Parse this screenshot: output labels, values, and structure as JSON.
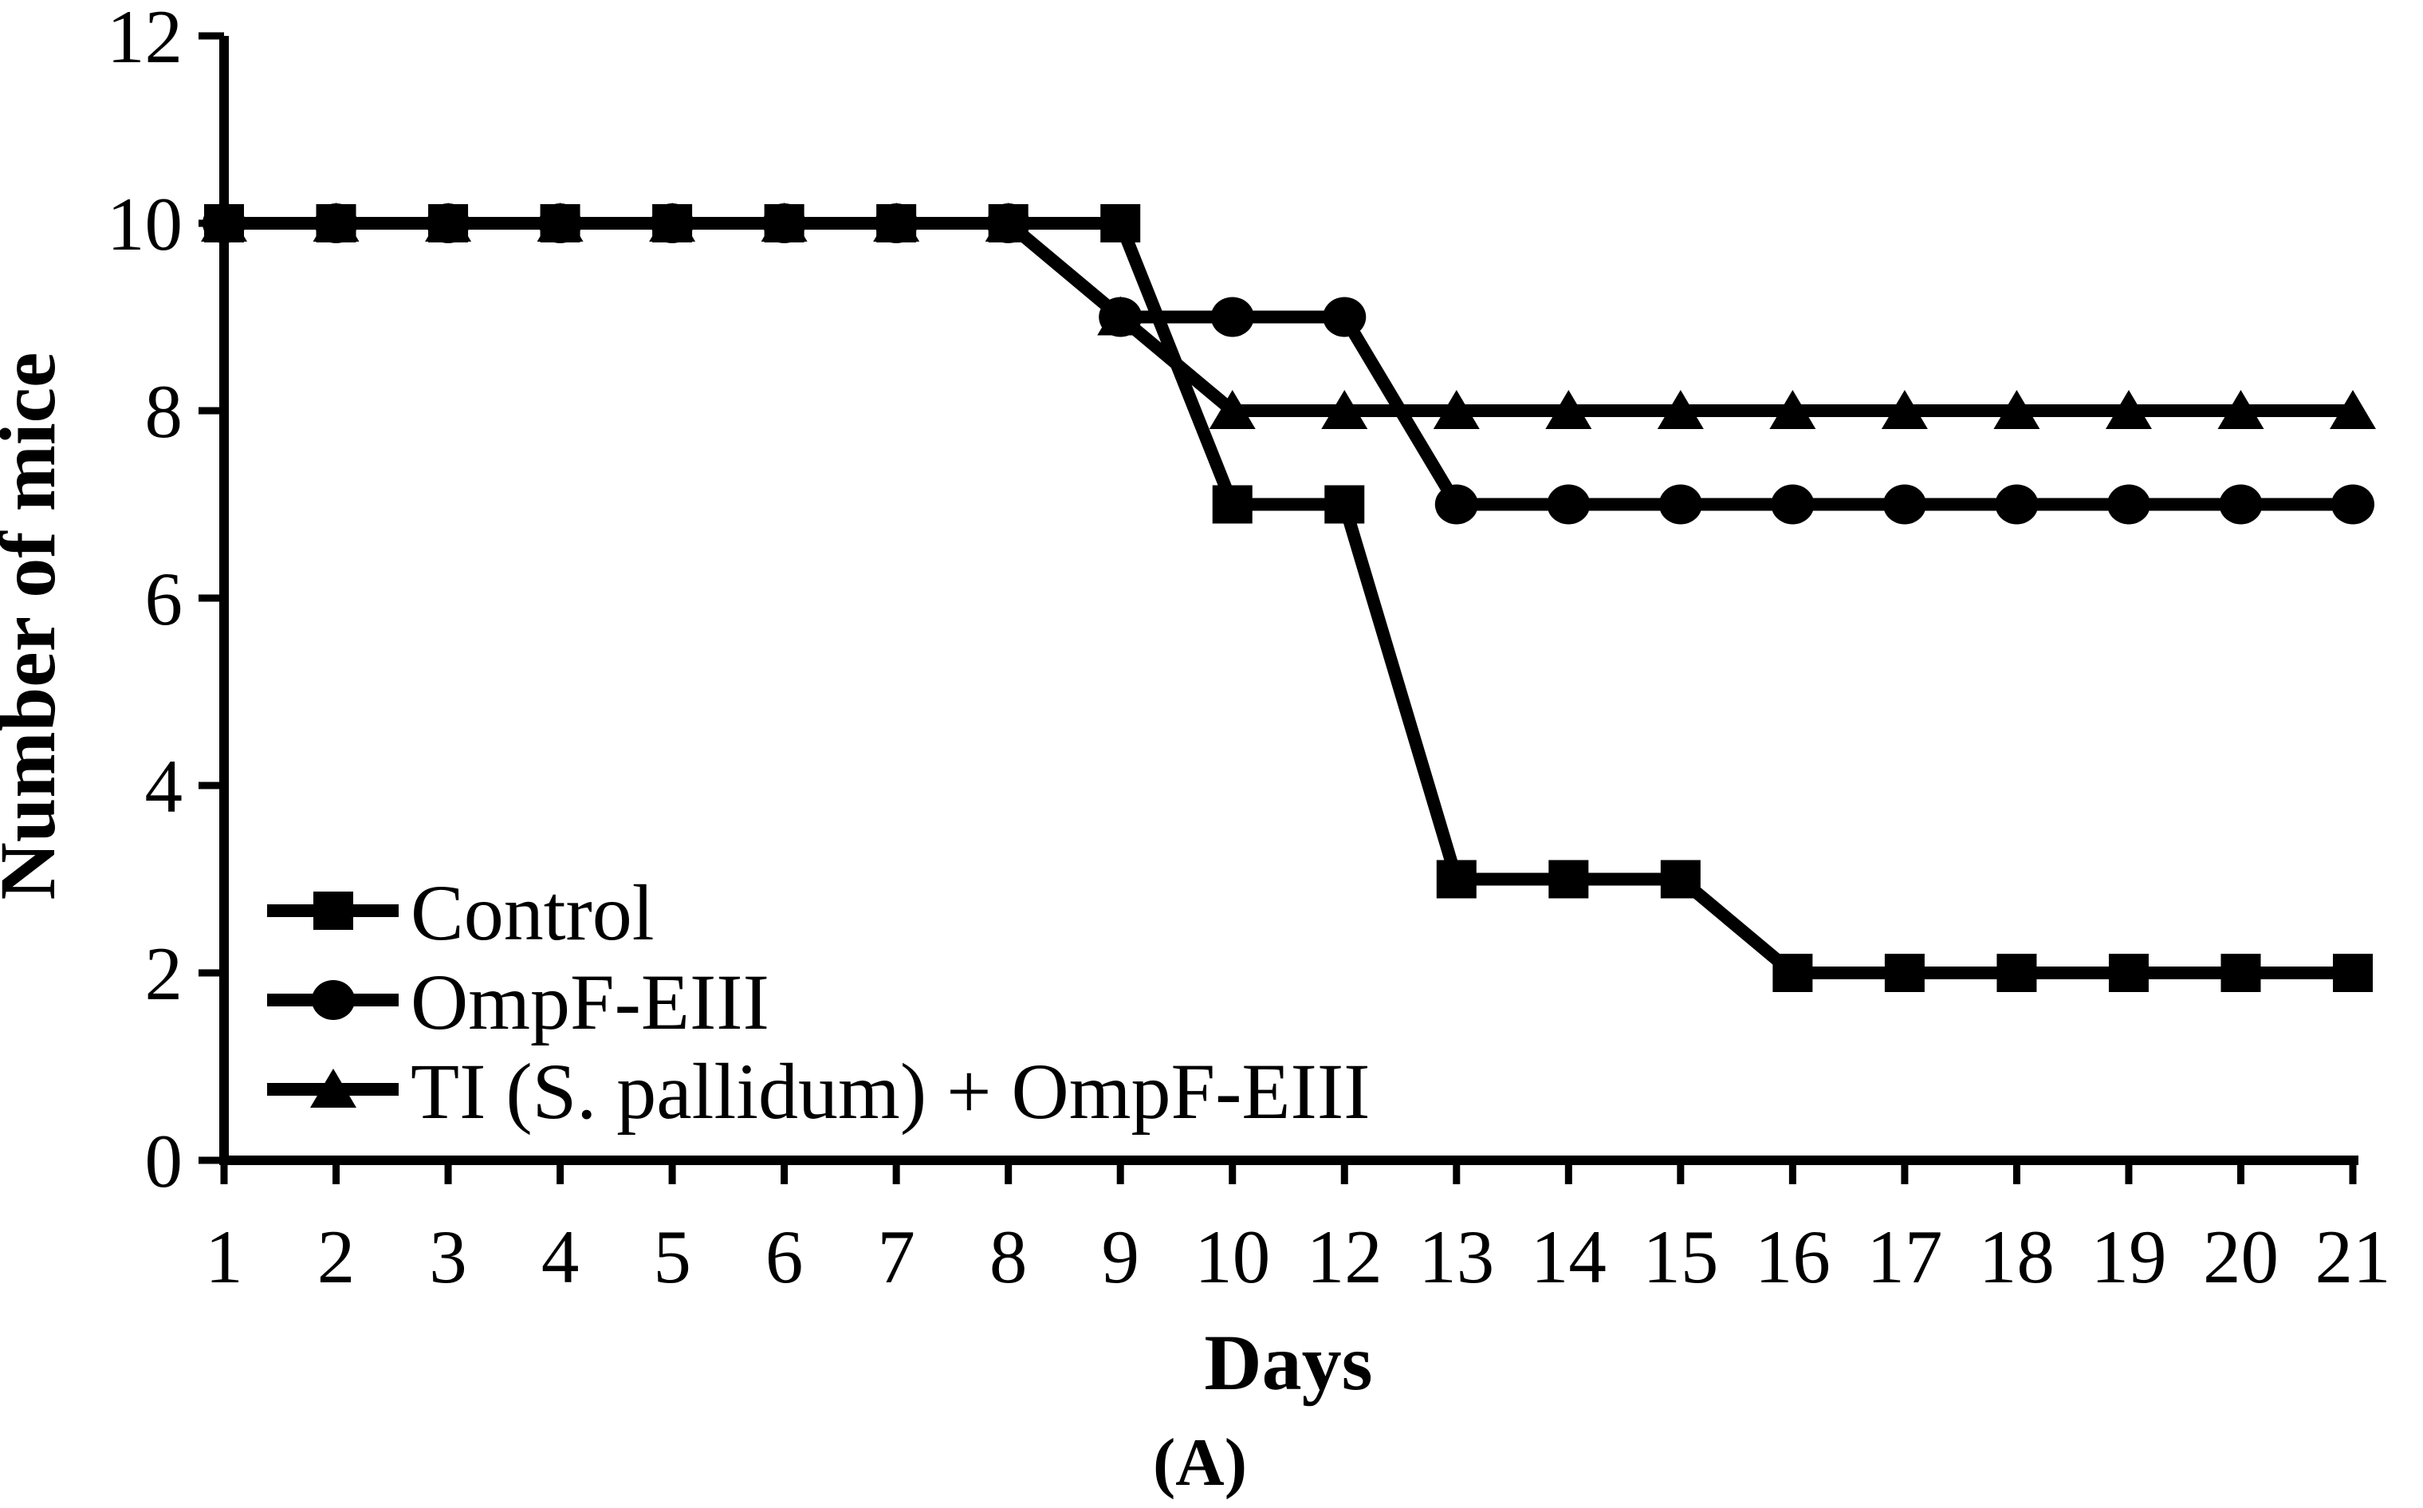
{
  "figure": {
    "caption": "(A)"
  },
  "chart_data": {
    "type": "line",
    "title": "",
    "xlabel": "Days",
    "ylabel": "Number of mice",
    "x_categories": [
      "1",
      "2",
      "3",
      "4",
      "5",
      "6",
      "7",
      "8",
      "9",
      "10",
      "12",
      "13",
      "14",
      "15",
      "16",
      "17",
      "18",
      "19",
      "20",
      "21"
    ],
    "ylim": [
      0,
      12
    ],
    "yticks": [
      "0",
      "2",
      "4",
      "6",
      "8",
      "10",
      "12"
    ],
    "grid": false,
    "legend_position": "inside-lower-left",
    "line_color": "#000000",
    "background_color": "#ffffff",
    "series": [
      {
        "name": "Control",
        "marker": "square",
        "values": [
          10,
          10,
          10,
          10,
          10,
          10,
          10,
          10,
          10,
          7,
          7,
          3,
          3,
          3,
          2,
          2,
          2,
          2,
          2,
          2
        ]
      },
      {
        "name": "OmpF-EIII",
        "marker": "circle",
        "values": [
          10,
          10,
          10,
          10,
          10,
          10,
          10,
          10,
          9,
          9,
          9,
          7,
          7,
          7,
          7,
          7,
          7,
          7,
          7,
          7
        ]
      },
      {
        "name": "TI (S. pallidum) + OmpF-EIII",
        "marker": "triangle",
        "values": [
          10,
          10,
          10,
          10,
          10,
          10,
          10,
          10,
          9,
          8,
          8,
          8,
          8,
          8,
          8,
          8,
          8,
          8,
          8,
          8
        ]
      }
    ]
  }
}
